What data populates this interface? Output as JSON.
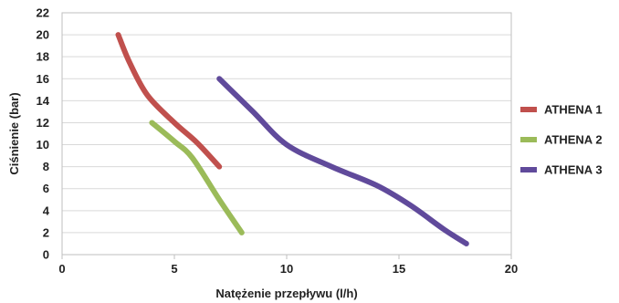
{
  "chart_data": {
    "type": "line",
    "xlabel": "Natężenie przepływu (l/h)",
    "ylabel": "Ciśnienie (bar)",
    "xlim": [
      0,
      20
    ],
    "ylim": [
      0,
      22
    ],
    "x_ticks": [
      0,
      5,
      10,
      15,
      20
    ],
    "y_ticks": [
      0,
      2,
      4,
      6,
      8,
      10,
      12,
      14,
      16,
      18,
      20,
      22
    ],
    "grid": "horizontal",
    "legend_position": "right",
    "series": [
      {
        "name": "ATHENA 1",
        "color": "#c0504d",
        "points": [
          [
            2.5,
            20
          ],
          [
            3.0,
            17.5
          ],
          [
            3.8,
            14.5
          ],
          [
            5.0,
            12
          ],
          [
            6.0,
            10.2
          ],
          [
            7.0,
            8
          ]
        ]
      },
      {
        "name": "ATHENA 2",
        "color": "#9bbb59",
        "points": [
          [
            4.0,
            12
          ],
          [
            5.0,
            10.3
          ],
          [
            5.8,
            8.8
          ],
          [
            7.0,
            5
          ],
          [
            8.0,
            2
          ]
        ]
      },
      {
        "name": "ATHENA 3",
        "color": "#604a9b",
        "points": [
          [
            7.0,
            16
          ],
          [
            8.5,
            13
          ],
          [
            10.0,
            10
          ],
          [
            12.0,
            8
          ],
          [
            14.0,
            6.3
          ],
          [
            15.5,
            4.5
          ],
          [
            17.0,
            2.3
          ],
          [
            18.0,
            1
          ]
        ]
      }
    ]
  }
}
